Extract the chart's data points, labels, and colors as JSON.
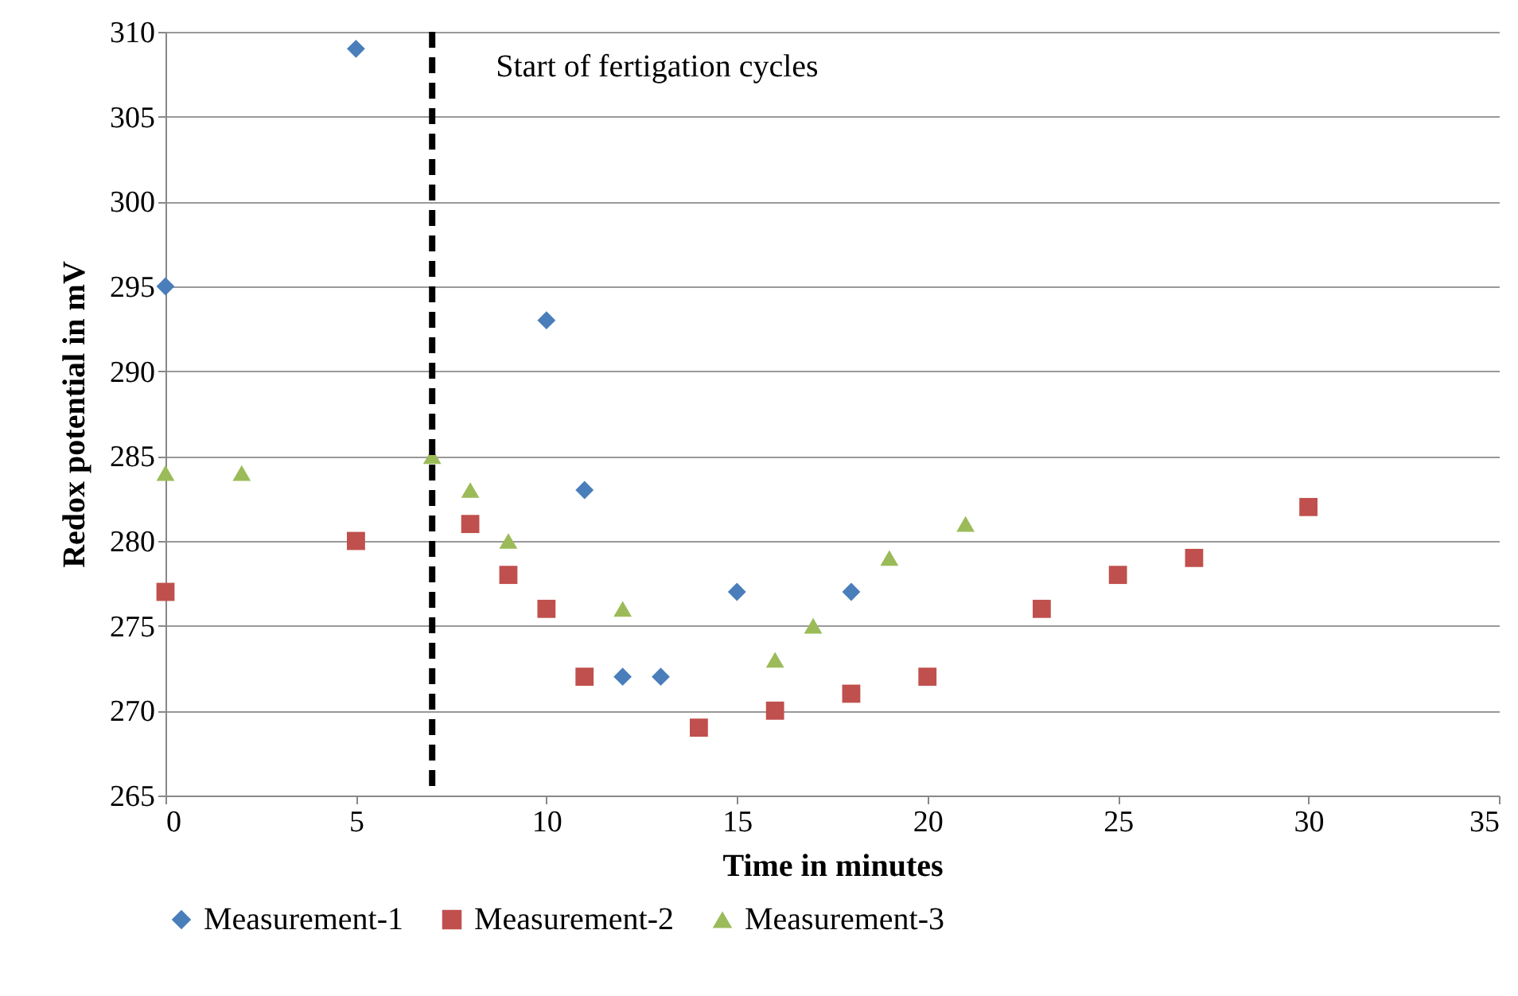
{
  "chart_data": {
    "type": "scatter",
    "xlabel": "Time in minutes",
    "ylabel": "Redox potential in mV",
    "xlim": [
      0,
      35
    ],
    "xticks": [
      0,
      5,
      10,
      15,
      20,
      25,
      30,
      35
    ],
    "ylim": [
      265,
      310
    ],
    "yticks": [
      265,
      270,
      275,
      280,
      285,
      290,
      295,
      300,
      305,
      310
    ],
    "grid": "y",
    "legend": "bottom",
    "series": [
      {
        "name": "Measurement-1",
        "color": "#4a7ebb",
        "marker": "diamond",
        "x": [
          0,
          5,
          10,
          11,
          12,
          13,
          15,
          18
        ],
        "values": [
          295,
          309,
          293,
          283,
          272,
          272,
          277,
          277
        ]
      },
      {
        "name": "Measurement-2",
        "color": "#c0504d",
        "marker": "square",
        "x": [
          0,
          5,
          8,
          9,
          10,
          11,
          14,
          16,
          18,
          20,
          23,
          25,
          27,
          30
        ],
        "values": [
          277,
          280,
          281,
          278,
          276,
          272,
          269,
          270,
          271,
          272,
          276,
          278,
          279,
          282
        ]
      },
      {
        "name": "Measurement-3",
        "color": "#9bbb59",
        "marker": "triangle",
        "x": [
          0,
          2,
          7,
          8,
          9,
          12,
          16,
          17,
          19,
          21
        ],
        "values": [
          284,
          284,
          285,
          283,
          280,
          276,
          273,
          275,
          279,
          281
        ]
      }
    ],
    "ref_lines": [
      {
        "axis": "x",
        "value": 7,
        "label": "Start of  fertigation cycles",
        "color": "#000000",
        "line_style": "dashed"
      }
    ]
  }
}
